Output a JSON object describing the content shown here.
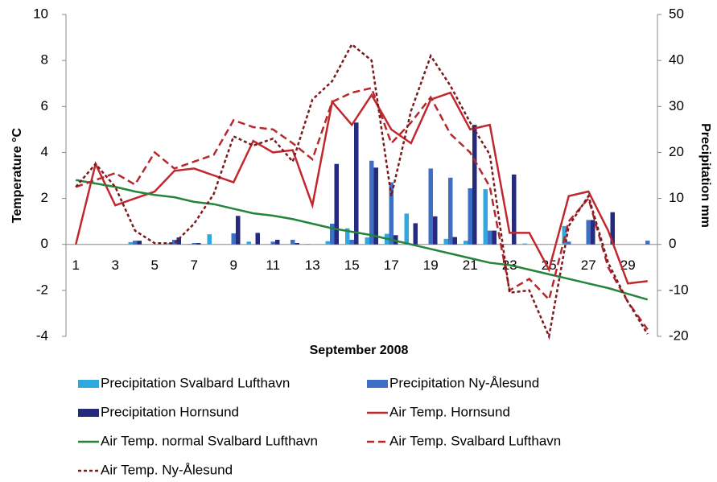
{
  "chart_data": {
    "type": "combo",
    "x_label": "September 2008",
    "y_label": "Temperature °C",
    "y2_label": "Precipitation mm",
    "categories": [
      "1",
      null,
      "3",
      null,
      "5",
      null,
      "7",
      null,
      "9",
      null,
      "11",
      null,
      "13",
      null,
      "15",
      null,
      "17",
      null,
      "19",
      null,
      "21",
      null,
      "23",
      null,
      "25",
      null,
      "27",
      null,
      "29",
      null
    ],
    "ylim": [
      -4,
      10
    ],
    "yticks": [
      -4,
      -2,
      0,
      2,
      4,
      6,
      8,
      10
    ],
    "y2lim": [
      -20,
      50
    ],
    "y2ticks": [
      -20,
      -10,
      0,
      10,
      20,
      30,
      40,
      50
    ],
    "series": [
      {
        "name": "Precipitation Svalbard Lufthavn",
        "type": "bar",
        "axis": "y2",
        "color": "#2ea8df",
        "values": [
          0,
          0,
          0,
          0.5,
          0,
          0.3,
          0.1,
          2.2,
          0,
          0.6,
          0,
          0,
          0.1,
          0.7,
          3.5,
          1.5,
          2.3,
          6.7,
          0,
          1.2,
          0.8,
          12.0,
          0.1,
          0.2,
          0,
          4.0,
          0,
          0,
          0,
          0
        ]
      },
      {
        "name": "Precipitation Ny-Ålesund",
        "type": "bar",
        "axis": "y2",
        "color": "#3d6fc4",
        "values": [
          0,
          0,
          0,
          0.8,
          0,
          1.0,
          0.3,
          0,
          2.4,
          0,
          0.6,
          1.0,
          0,
          4.5,
          1.0,
          18.2,
          13.5,
          0,
          16.5,
          14.5,
          12.2,
          3.0,
          0,
          0,
          0,
          0.6,
          5.3,
          0,
          0,
          0.8
        ]
      },
      {
        "name": "Precipitation Hornsund",
        "type": "bar",
        "axis": "y2",
        "color": "#262a7d",
        "values": [
          0,
          0,
          0,
          0.8,
          0,
          1.5,
          0.3,
          0,
          6.2,
          2.5,
          1.0,
          0.3,
          0,
          17.5,
          26.5,
          16.7,
          2.0,
          4.6,
          6.1,
          1.6,
          26.0,
          3.0,
          15.2,
          0,
          0,
          0,
          5.3,
          7.0,
          0,
          0
        ]
      },
      {
        "name": "Air Temp. Hornsund",
        "type": "line",
        "axis": "y",
        "color": "#c0282d",
        "dash": "solid",
        "values": [
          0,
          3.5,
          1.7,
          2.0,
          2.3,
          3.2,
          3.3,
          3.0,
          2.7,
          4.5,
          4.0,
          4.1,
          1.7,
          6.2,
          5.2,
          6.5,
          5.0,
          4.4,
          6.3,
          6.6,
          5.0,
          5.2,
          0.5,
          0.5,
          -1.1,
          2.1,
          2.3,
          0.6,
          -1.7,
          -1.6
        ]
      },
      {
        "name": "Air Temp. normal Svalbard Lufthavn",
        "type": "line",
        "axis": "y",
        "color": "#24843a",
        "dash": "solid",
        "values": [
          2.8,
          2.65,
          2.5,
          2.3,
          2.15,
          2.05,
          1.85,
          1.75,
          1.55,
          1.35,
          1.25,
          1.1,
          0.9,
          0.7,
          0.55,
          0.4,
          0.2,
          0.0,
          -0.2,
          -0.4,
          -0.6,
          -0.8,
          -0.9,
          -1.1,
          -1.3,
          -1.5,
          -1.7,
          -1.9,
          -2.15,
          -2.4
        ]
      },
      {
        "name": "Air Temp. Svalbard Lufthavn",
        "type": "line",
        "axis": "y",
        "color": "#b7282e",
        "dash": "long",
        "values": [
          2.5,
          2.8,
          3.1,
          2.6,
          4.0,
          3.3,
          3.6,
          3.9,
          5.4,
          5.1,
          5.0,
          4.4,
          3.7,
          6.2,
          6.6,
          6.8,
          4.4,
          5.3,
          6.4,
          4.8,
          4.0,
          2.5,
          -2.0,
          -1.5,
          -2.4,
          1.0,
          2.0,
          -1.0,
          -2.5,
          -3.7
        ]
      },
      {
        "name": "Air Temp. Ny-Ålesund",
        "type": "line",
        "axis": "y",
        "color": "#7a1a1e",
        "dash": "short",
        "values": [
          2.5,
          3.5,
          2.5,
          0.6,
          0.05,
          0.05,
          0.9,
          2.2,
          4.7,
          4.3,
          4.6,
          3.6,
          6.3,
          7.1,
          8.7,
          8.0,
          2.1,
          5.8,
          8.2,
          6.9,
          5.3,
          3.9,
          -2.1,
          -2.0,
          -4.0,
          0.8,
          2.1,
          -0.8,
          -2.5,
          -3.9
        ]
      }
    ]
  }
}
